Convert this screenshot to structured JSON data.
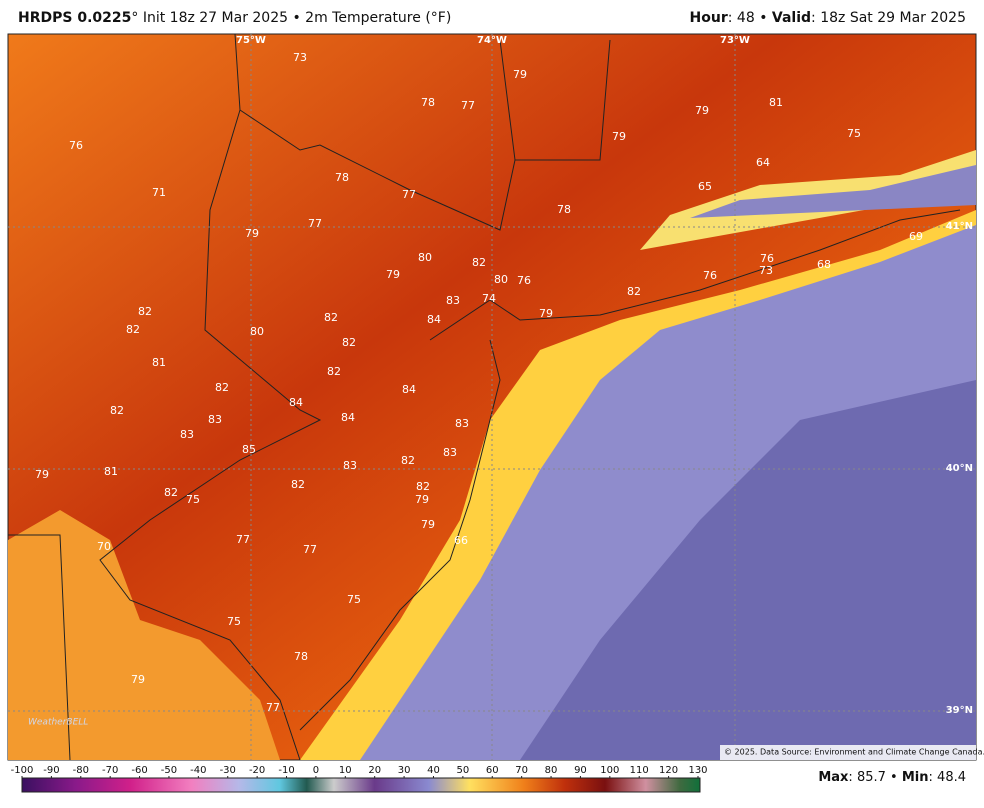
{
  "header": {
    "model": "HRDPS 0.0225",
    "init": "° Init 18z 27 Mar 2025 • 2m Temperature (°F)",
    "hour_label": "Hour",
    "hour": ": 48 • ",
    "valid_label": "Valid",
    "valid": ": 18z Sat 29 Mar 2025"
  },
  "map": {
    "longitude_labels": [
      "75°W",
      "74°W",
      "73°W"
    ],
    "latitude_labels": [
      "41°N",
      "40°N",
      "39°N"
    ],
    "station_values": [
      73,
      79,
      78,
      77,
      79,
      81,
      75,
      79,
      76,
      64,
      65,
      78,
      77,
      71,
      78,
      77,
      79,
      69,
      80,
      82,
      79,
      76,
      73,
      76,
      68,
      80,
      76,
      82,
      83,
      74,
      79,
      84,
      82,
      82,
      80,
      82,
      82,
      81,
      82,
      84,
      82,
      84,
      82,
      83,
      84,
      83,
      83,
      85,
      83,
      82,
      83,
      79,
      81,
      82,
      82,
      82,
      75,
      79,
      79,
      66,
      70,
      77,
      77,
      75,
      75,
      78,
      79,
      77
    ],
    "copyright": "© 2025. Data Source: Environment and Climate Change Canada.",
    "watermark": "WeatherBELL"
  },
  "colorbar": {
    "ticks": [
      -100,
      -90,
      -80,
      -70,
      -60,
      -50,
      -40,
      -30,
      -20,
      -10,
      0,
      10,
      20,
      30,
      40,
      50,
      60,
      70,
      80,
      90,
      100,
      110,
      120,
      130
    ]
  },
  "footer": {
    "max_label": "Max",
    "max_sep": ":",
    "max": 85.7,
    "separator": "•",
    "min_label": "Min",
    "min_sep": ":",
    "min": 48.4
  }
}
